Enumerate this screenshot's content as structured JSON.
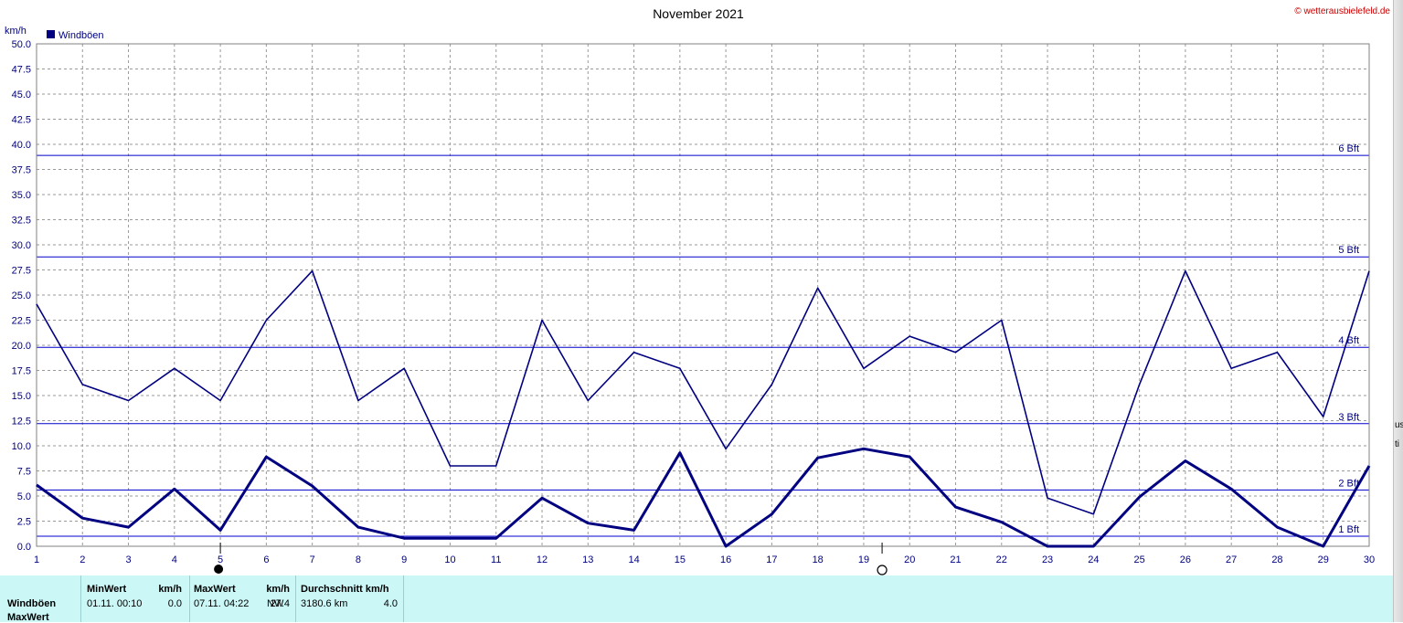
{
  "title": "November 2021",
  "copyright": "© wetterausbielefeld.de",
  "unit_label": "km/h",
  "legend": {
    "label": "Windböen",
    "color": "#000080"
  },
  "beaufort": [
    {
      "label": "1 Bft",
      "value": 1.0
    },
    {
      "label": "2 Bft",
      "value": 5.6
    },
    {
      "label": "3 Bft",
      "value": 12.2
    },
    {
      "label": "4 Bft",
      "value": 19.8
    },
    {
      "label": "5 Bft",
      "value": 28.8
    },
    {
      "label": "6 Bft",
      "value": 38.9
    }
  ],
  "moon": [
    {
      "day": 5,
      "phase": "new-moon"
    },
    {
      "day": 19.4,
      "phase": "full-moon"
    }
  ],
  "chart_data": {
    "type": "line",
    "title": "November 2021",
    "ylabel": "km/h",
    "ylim": [
      0,
      50
    ],
    "xlim": [
      1,
      30
    ],
    "x_ticks": [
      1,
      2,
      3,
      4,
      5,
      6,
      7,
      8,
      9,
      10,
      11,
      12,
      13,
      14,
      15,
      16,
      17,
      18,
      19,
      20,
      21,
      22,
      23,
      24,
      25,
      26,
      27,
      28,
      29,
      30
    ],
    "y_ticks": [
      "0.0",
      "2.5",
      "5.0",
      "7.5",
      "10.0",
      "12.5",
      "15.0",
      "17.5",
      "20.0",
      "22.5",
      "25.0",
      "27.5",
      "30.0",
      "32.5",
      "35.0",
      "37.5",
      "40.0",
      "42.5",
      "45.0",
      "47.5",
      "50.0"
    ],
    "grid": true,
    "legend_position": "top-left",
    "series": [
      {
        "name": "Windböen",
        "color": "#000080",
        "stroke": "thin",
        "x": [
          1,
          2,
          3,
          4,
          5,
          6,
          7,
          8,
          9,
          10,
          11,
          12,
          13,
          14,
          15,
          16,
          17,
          18,
          19,
          20,
          21,
          22,
          23,
          24,
          25,
          26,
          27,
          28,
          29,
          30
        ],
        "values": [
          24.1,
          16.1,
          14.5,
          17.7,
          14.5,
          22.5,
          27.4,
          14.5,
          17.7,
          8.0,
          8.0,
          22.5,
          14.5,
          19.3,
          17.7,
          9.7,
          16.1,
          25.7,
          17.7,
          20.9,
          19.3,
          22.5,
          4.8,
          3.2,
          16.1,
          27.4,
          17.7,
          19.3,
          12.9,
          27.4
        ]
      },
      {
        "stroke": "thick",
        "color": "#000080",
        "x": [
          1,
          2,
          3,
          4,
          5,
          6,
          7,
          8,
          9,
          10,
          11,
          12,
          13,
          14,
          15,
          16,
          17,
          18,
          19,
          20,
          21,
          22,
          23,
          24,
          25,
          26,
          27,
          28,
          29,
          30
        ],
        "values": [
          6.1,
          2.8,
          1.9,
          5.7,
          1.6,
          8.9,
          6.0,
          1.9,
          0.8,
          0.8,
          0.8,
          4.8,
          2.3,
          1.6,
          9.3,
          0.0,
          3.2,
          8.8,
          9.7,
          8.9,
          3.9,
          2.4,
          0.0,
          0.0,
          4.9,
          8.5,
          5.7,
          1.9,
          0.0,
          8.0
        ]
      }
    ]
  },
  "stats": {
    "row_label_1": "Windböen",
    "row_label_2": "MaxWert",
    "min": {
      "header": "MinWert",
      "unit": "km/h",
      "date": "01.11.  00:10",
      "value": "0.0"
    },
    "max": {
      "header": "MaxWert",
      "unit": "km/h",
      "date": "07.11.  04:22",
      "dir": "NW",
      "value": "27.4"
    },
    "avg": {
      "header": "Durchschnitt km/h",
      "distance": "3180.6 km",
      "value": "4.0"
    }
  },
  "right_strip": {
    "text_1": "us",
    "text_2": "ti"
  }
}
